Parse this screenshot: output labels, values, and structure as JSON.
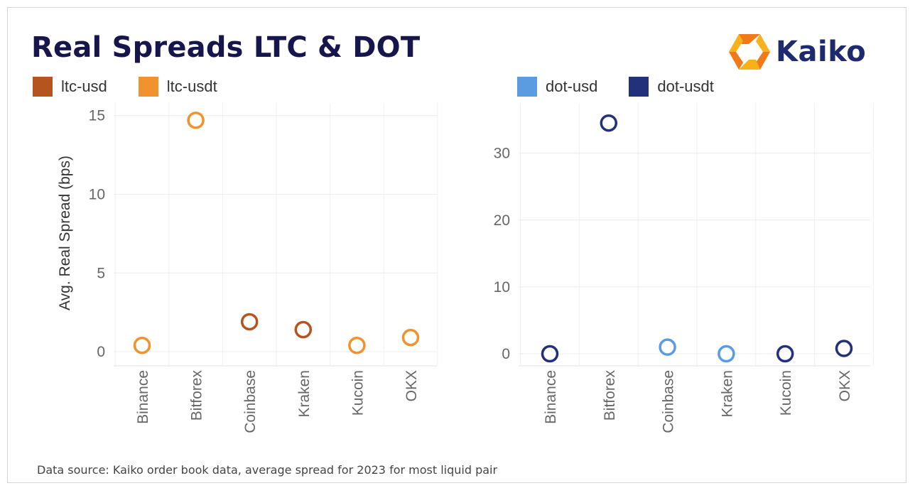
{
  "title": "Real Spreads LTC & DOT",
  "logo": {
    "text": "Kaiko",
    "icon": "kaiko-hexagon-logo"
  },
  "source": "Data source: Kaiko order book data, average spread for 2023 for most liquid pair",
  "colors": {
    "ltc_usd": "#b5541f",
    "ltc_usdt": "#f0922e",
    "dot_usd": "#5b9be0",
    "dot_usdt": "#23307a",
    "logo_orange": "#f07a1a",
    "logo_yellow": "#f7b11c"
  },
  "chart_data": [
    {
      "type": "scatter",
      "ylabel": "Avg. Real Spread (bps)",
      "categories": [
        "Binance",
        "Bitforex",
        "Coinbase",
        "Kraken",
        "Kucoin",
        "OKX"
      ],
      "ylim": [
        -0.9,
        15.8
      ],
      "yticks": [
        0,
        5,
        10,
        15
      ],
      "series": [
        {
          "name": "ltc-usd",
          "color": "#b5541f",
          "values": [
            null,
            null,
            1.9,
            1.4,
            null,
            null
          ]
        },
        {
          "name": "ltc-usdt",
          "color": "#f0922e",
          "values": [
            0.4,
            14.7,
            null,
            null,
            0.4,
            0.9
          ]
        }
      ]
    },
    {
      "type": "scatter",
      "ylabel": "",
      "categories": [
        "Binance",
        "Bitforex",
        "Coinbase",
        "Kraken",
        "Kucoin",
        "OKX"
      ],
      "ylim": [
        -1.8,
        37.5
      ],
      "yticks": [
        0,
        10,
        20,
        30
      ],
      "series": [
        {
          "name": "dot-usd",
          "color": "#5b9be0",
          "values": [
            null,
            null,
            1.0,
            0.0,
            null,
            null
          ]
        },
        {
          "name": "dot-usdt",
          "color": "#23307a",
          "values": [
            0.0,
            34.5,
            null,
            null,
            0.0,
            0.8
          ]
        }
      ]
    }
  ]
}
